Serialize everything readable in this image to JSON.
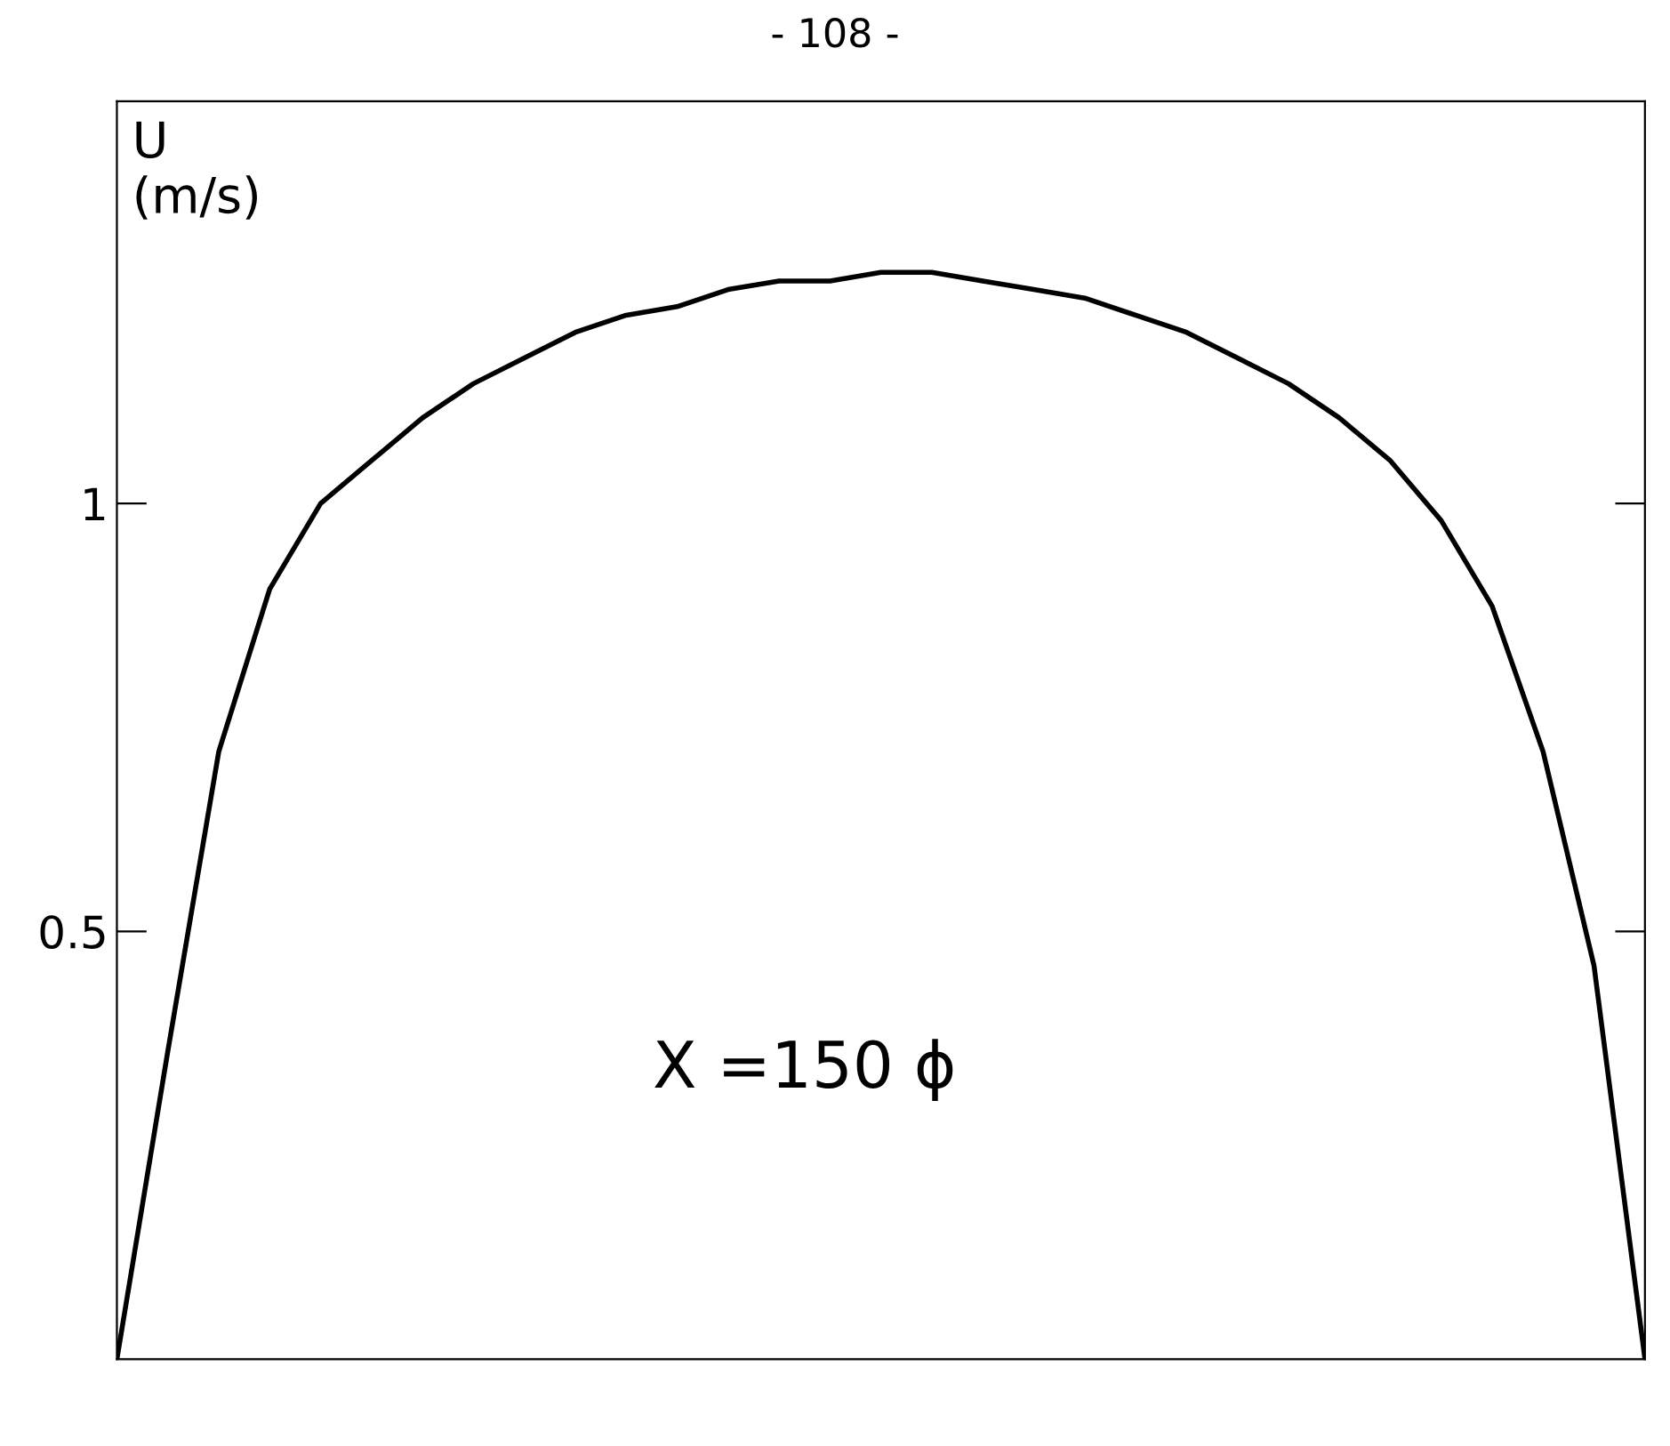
{
  "chart_data": {
    "type": "line",
    "title": "- 108 -",
    "ylabel": "U\n(m/s)",
    "annotations": [
      "X =150 ϕ"
    ],
    "categories": [
      null,
      null,
      null,
      null,
      null,
      null,
      null,
      null,
      null,
      null,
      null,
      null,
      null,
      null,
      null,
      null,
      null,
      null,
      null,
      null,
      null,
      null,
      null,
      null,
      null,
      null,
      null,
      null,
      null,
      null,
      null
    ],
    "series": [
      {
        "color": "#000000",
        "values": [
          0,
          0.36,
          0.71,
          0.9,
          1.0,
          1.05,
          1.1,
          1.14,
          1.17,
          1.2,
          1.22,
          1.23,
          1.25,
          1.26,
          1.26,
          1.27,
          1.27,
          1.26,
          1.25,
          1.24,
          1.22,
          1.2,
          1.17,
          1.14,
          1.1,
          1.05,
          0.98,
          0.88,
          0.71,
          0.46,
          0
        ]
      }
    ],
    "ylim": [
      0,
      1.47
    ],
    "yticks": [
      0.5,
      1
    ],
    "tick_labels": "y",
    "grid": false,
    "legend": false,
    "marker": "none",
    "line_style": "solid"
  }
}
